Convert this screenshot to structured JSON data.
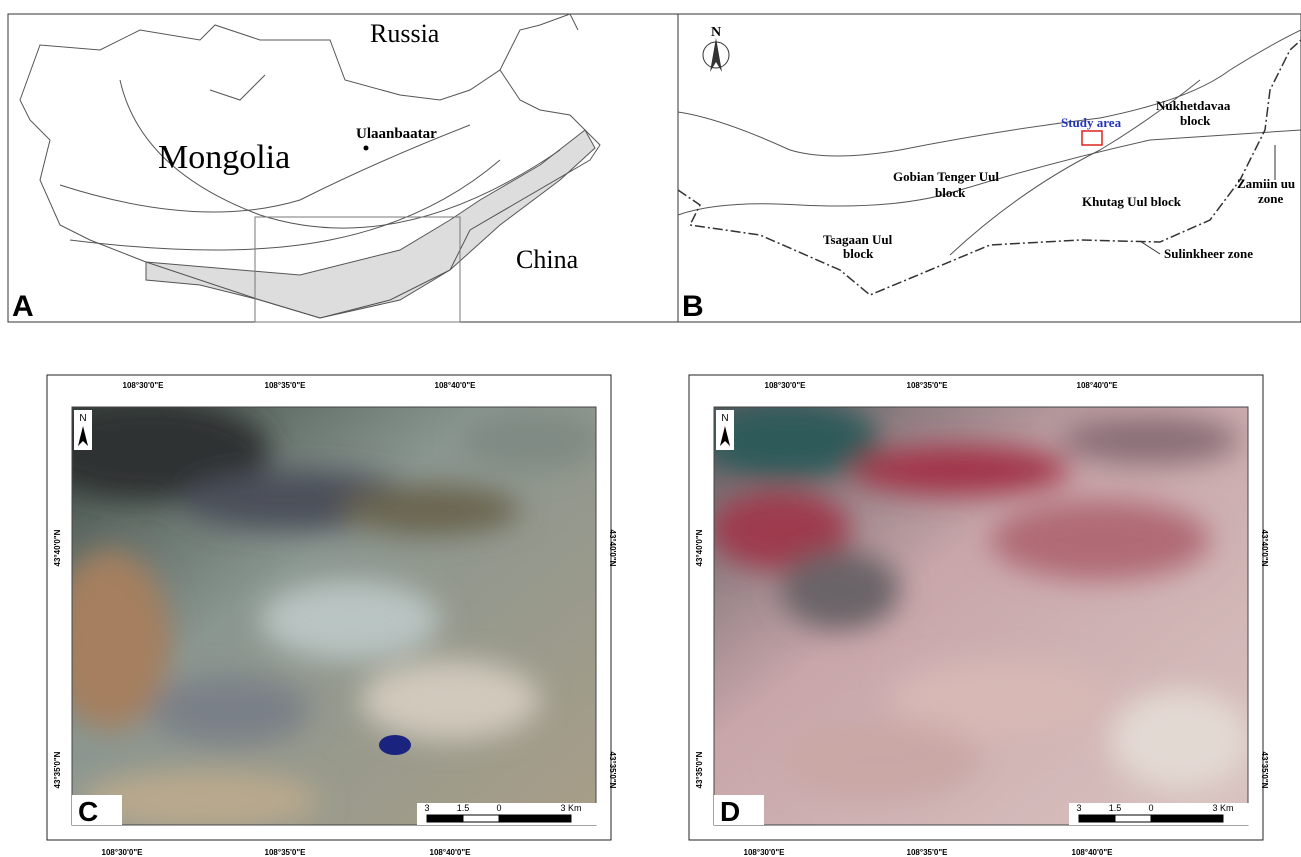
{
  "panel_a": {
    "letter": "A",
    "labels": [
      "Russia",
      "Mongolia",
      "Ulaanbaatar",
      "China"
    ]
  },
  "panel_b": {
    "letter": "B",
    "north": "N",
    "study_area": "Study area",
    "labels": [
      "Nukhetdavaa",
      "block",
      "Gobian Tenger Uul",
      "block",
      "Khutag Uul block",
      "Zamiin uu",
      "zone",
      "Tsagaan Uul",
      "block",
      "Sulinkheer zone"
    ]
  },
  "panel_c": {
    "letter": "C",
    "north": "N",
    "lon_labels": [
      "108°30'0\"E",
      "108°35'0\"E",
      "108°40'0\"E"
    ],
    "lat_labels": [
      "43°40'0\"N",
      "43°35'0\"N"
    ],
    "scale_labels": [
      "3",
      "1.5",
      "0",
      "3 Km"
    ]
  },
  "panel_d": {
    "letter": "D",
    "north": "N",
    "lon_labels": [
      "108°30'0\"E",
      "108°35'0\"E",
      "108°40'0\"E"
    ],
    "lat_labels": [
      "43°40'0\"N",
      "43°35'0\"N"
    ],
    "scale_labels": [
      "3",
      "1.5",
      "0",
      "3 Km"
    ]
  }
}
